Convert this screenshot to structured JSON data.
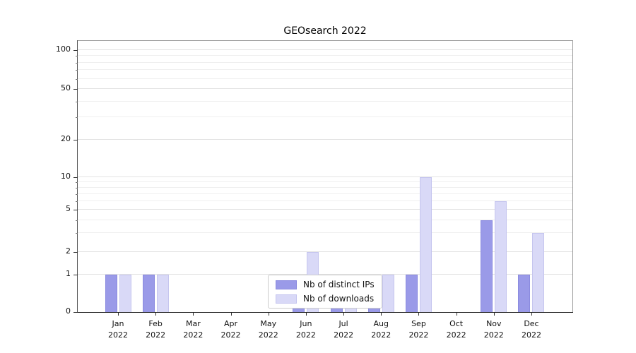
{
  "chart_data": {
    "type": "bar",
    "title": "GEOsearch 2022",
    "categories": [
      "Jan",
      "Feb",
      "Mar",
      "Apr",
      "May",
      "Jun",
      "Jul",
      "Aug",
      "Sep",
      "Oct",
      "Nov",
      "Dec"
    ],
    "year_label": "2022",
    "series": [
      {
        "name": "Nb of distinct IPs",
        "fill": "#9a9ae8",
        "edge": "#8a8adf",
        "values": [
          1,
          1,
          0,
          0,
          0,
          1,
          1,
          1,
          1,
          0,
          4,
          1
        ]
      },
      {
        "name": "Nb of downloads",
        "fill": "#d9d9f7",
        "edge": "#c5c5ef",
        "values": [
          1,
          1,
          0,
          0,
          0,
          2,
          1,
          1,
          10,
          0,
          6,
          3
        ]
      }
    ],
    "xlabel": "",
    "ylabel": "",
    "yscale": "log-like with 0 baseline",
    "y_ticks": [
      0,
      1,
      2,
      5,
      10,
      20,
      50,
      100
    ],
    "y_minor_ticks": [
      3,
      4,
      6,
      7,
      8,
      9,
      30,
      40,
      60,
      70,
      80,
      90
    ],
    "ylim": [
      0,
      120
    ],
    "grid": "horizontal",
    "legend_position": "lower center"
  },
  "legend": {
    "items": [
      {
        "label": "Nb of distinct IPs"
      },
      {
        "label": "Nb of downloads"
      }
    ]
  },
  "colors": {
    "distinct_ips": "#9a9ae8",
    "downloads": "#d9d9f7",
    "grid_minor": "#efefef",
    "grid_major": "#e2e2e2",
    "background": "#ffffff"
  }
}
